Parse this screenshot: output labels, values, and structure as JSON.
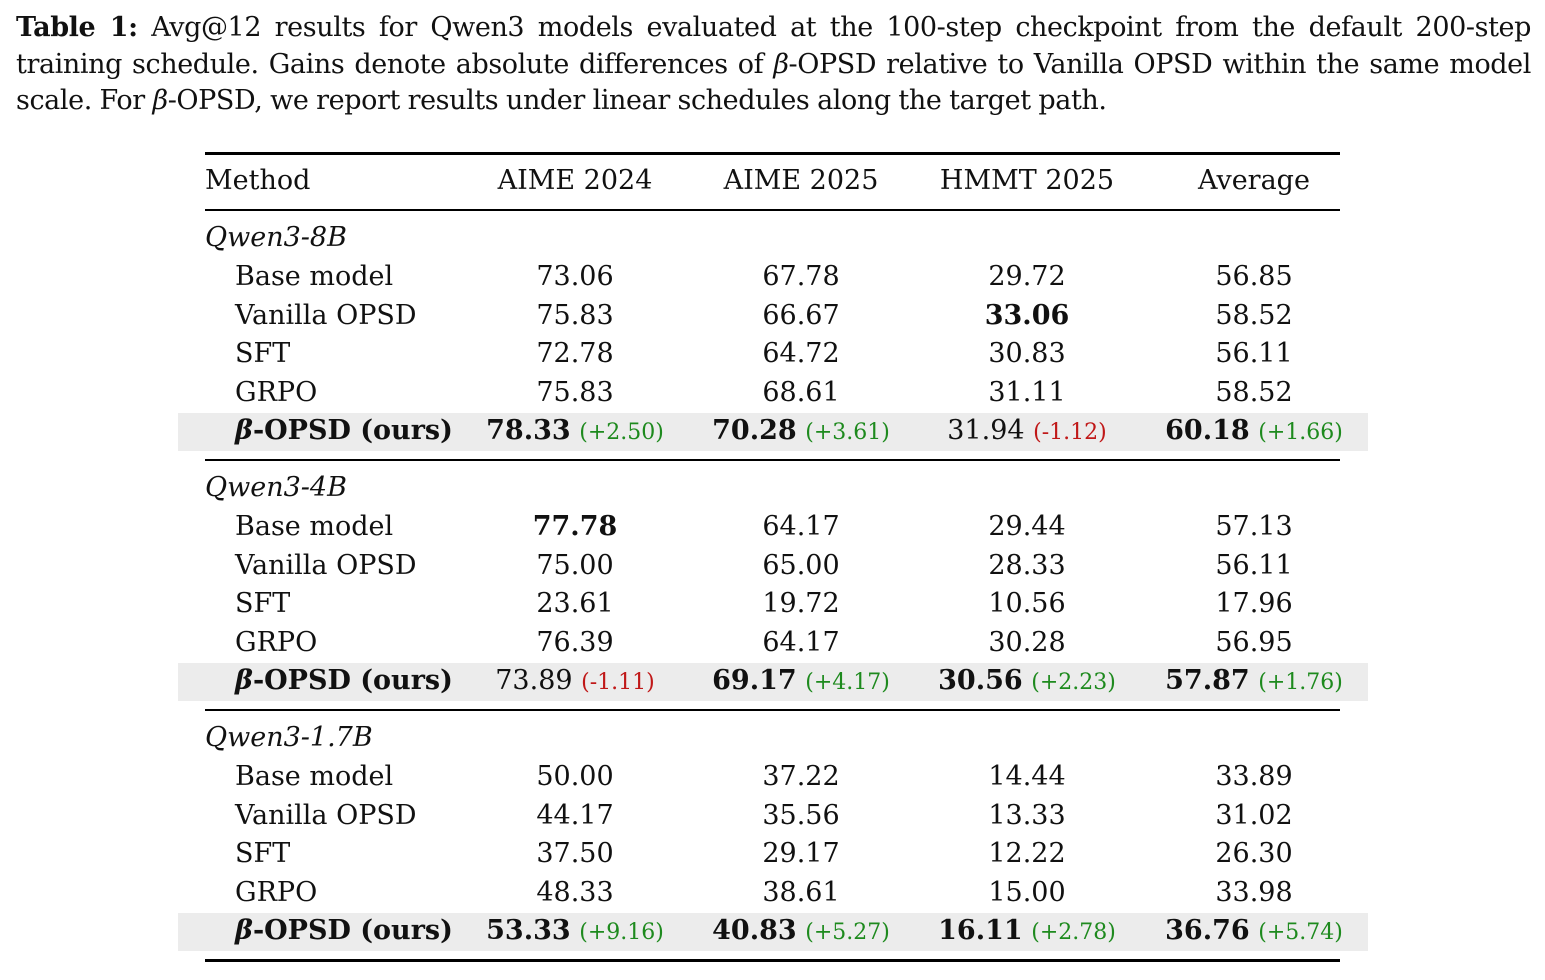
{
  "caption": {
    "label": "Table 1:",
    "part1": " Avg@12 results for Qwen3 models evaluated at the 100-step checkpoint from the default 200-step training schedule. Gains denote absolute differences of ",
    "beta1": "β",
    "part2": "-OPSD relative to Vanilla OPSD within the same model scale. For ",
    "beta2": "β",
    "part3": "-OPSD, we report results under linear schedules along the target path."
  },
  "table": {
    "headers": [
      "Method",
      "AIME 2024",
      "AIME 2025",
      "HMMT 2025",
      "Average"
    ],
    "groups": [
      {
        "name": "Qwen3-8B",
        "rows": [
          {
            "method": "Base model",
            "values": [
              "73.06",
              "67.78",
              "29.72",
              "56.85"
            ],
            "bold": [
              false,
              false,
              false,
              false
            ]
          },
          {
            "method": "Vanilla OPSD",
            "values": [
              "75.83",
              "66.67",
              "33.06",
              "58.52"
            ],
            "bold": [
              false,
              false,
              true,
              false
            ]
          },
          {
            "method": "SFT",
            "values": [
              "72.78",
              "64.72",
              "30.83",
              "56.11"
            ],
            "bold": [
              false,
              false,
              false,
              false
            ]
          },
          {
            "method": "GRPO",
            "values": [
              "75.83",
              "68.61",
              "31.11",
              "58.52"
            ],
            "bold": [
              false,
              false,
              false,
              false
            ]
          }
        ],
        "ours": {
          "beta": "β",
          "method": "-OPSD (ours)",
          "values": [
            "78.33",
            "70.28",
            "31.94",
            "60.18"
          ],
          "bold": [
            true,
            true,
            false,
            true
          ],
          "gains": [
            "(+2.50)",
            "(+3.61)",
            "(-1.12)",
            "(+1.66)"
          ]
        }
      },
      {
        "name": "Qwen3-4B",
        "rows": [
          {
            "method": "Base model",
            "values": [
              "77.78",
              "64.17",
              "29.44",
              "57.13"
            ],
            "bold": [
              true,
              false,
              false,
              false
            ]
          },
          {
            "method": "Vanilla OPSD",
            "values": [
              "75.00",
              "65.00",
              "28.33",
              "56.11"
            ],
            "bold": [
              false,
              false,
              false,
              false
            ]
          },
          {
            "method": "SFT",
            "values": [
              "23.61",
              "19.72",
              "10.56",
              "17.96"
            ],
            "bold": [
              false,
              false,
              false,
              false
            ]
          },
          {
            "method": "GRPO",
            "values": [
              "76.39",
              "64.17",
              "30.28",
              "56.95"
            ],
            "bold": [
              false,
              false,
              false,
              false
            ]
          }
        ],
        "ours": {
          "beta": "β",
          "method": "-OPSD (ours)",
          "values": [
            "73.89",
            "69.17",
            "30.56",
            "57.87"
          ],
          "bold": [
            false,
            true,
            true,
            true
          ],
          "gains": [
            "(-1.11)",
            "(+4.17)",
            "(+2.23)",
            "(+1.76)"
          ]
        }
      },
      {
        "name": "Qwen3-1.7B",
        "rows": [
          {
            "method": "Base model",
            "values": [
              "50.00",
              "37.22",
              "14.44",
              "33.89"
            ],
            "bold": [
              false,
              false,
              false,
              false
            ]
          },
          {
            "method": "Vanilla OPSD",
            "values": [
              "44.17",
              "35.56",
              "13.33",
              "31.02"
            ],
            "bold": [
              false,
              false,
              false,
              false
            ]
          },
          {
            "method": "SFT",
            "values": [
              "37.50",
              "29.17",
              "12.22",
              "26.30"
            ],
            "bold": [
              false,
              false,
              false,
              false
            ]
          },
          {
            "method": "GRPO",
            "values": [
              "48.33",
              "38.61",
              "15.00",
              "33.98"
            ],
            "bold": [
              false,
              false,
              false,
              false
            ]
          }
        ],
        "ours": {
          "beta": "β",
          "method": "-OPSD (ours)",
          "values": [
            "53.33",
            "40.83",
            "16.11",
            "36.76"
          ],
          "bold": [
            true,
            true,
            true,
            true
          ],
          "gains": [
            "(+9.16)",
            "(+5.27)",
            "(+2.78)",
            "(+5.74)"
          ]
        }
      }
    ]
  },
  "colors": {
    "gain_positive": "#1e8a1e",
    "gain_negative": "#c01818",
    "highlight_row": "#ececec"
  }
}
